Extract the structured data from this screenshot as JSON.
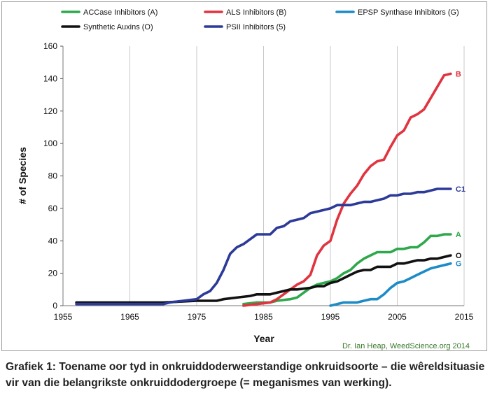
{
  "chart_data": {
    "type": "line",
    "xlabel": "Year",
    "ylabel": "# of Species",
    "xlim": [
      1955,
      2015
    ],
    "ylim": [
      0,
      160
    ],
    "x_ticks": [
      "1955",
      "1965",
      "1975",
      "1985",
      "1995",
      "2005",
      "2015"
    ],
    "y_ticks": [
      "0",
      "20",
      "40",
      "60",
      "80",
      "100",
      "120",
      "140",
      "160"
    ],
    "grid": true,
    "legend_position": "top",
    "annotation": "Dr. Ian Heap, WeedScience.org  2014",
    "series": [
      {
        "name": "ACCase Inhibitors (A)",
        "end_label": "A",
        "color": "#2ea84a",
        "points": [
          [
            1982,
            1
          ],
          [
            1984,
            2
          ],
          [
            1986,
            2
          ],
          [
            1987,
            3
          ],
          [
            1989,
            4
          ],
          [
            1990,
            5
          ],
          [
            1991,
            8
          ],
          [
            1992,
            11
          ],
          [
            1993,
            13
          ],
          [
            1994,
            14
          ],
          [
            1995,
            15
          ],
          [
            1996,
            17
          ],
          [
            1997,
            20
          ],
          [
            1998,
            22
          ],
          [
            1999,
            26
          ],
          [
            2000,
            29
          ],
          [
            2001,
            31
          ],
          [
            2002,
            33
          ],
          [
            2003,
            33
          ],
          [
            2004,
            33
          ],
          [
            2005,
            35
          ],
          [
            2006,
            35
          ],
          [
            2007,
            36
          ],
          [
            2008,
            36
          ],
          [
            2009,
            39
          ],
          [
            2010,
            43
          ],
          [
            2011,
            43
          ],
          [
            2012,
            44
          ],
          [
            2013,
            44
          ]
        ]
      },
      {
        "name": "ALS Inhibitors (B)",
        "end_label": "B",
        "color": "#e03440",
        "points": [
          [
            1982,
            0
          ],
          [
            1984,
            1
          ],
          [
            1986,
            2
          ],
          [
            1987,
            4
          ],
          [
            1988,
            7
          ],
          [
            1989,
            10
          ],
          [
            1990,
            13
          ],
          [
            1991,
            15
          ],
          [
            1992,
            19
          ],
          [
            1993,
            31
          ],
          [
            1994,
            37
          ],
          [
            1995,
            40
          ],
          [
            1996,
            53
          ],
          [
            1997,
            63
          ],
          [
            1998,
            69
          ],
          [
            1999,
            74
          ],
          [
            2000,
            81
          ],
          [
            2001,
            86
          ],
          [
            2002,
            89
          ],
          [
            2003,
            90
          ],
          [
            2004,
            98
          ],
          [
            2005,
            105
          ],
          [
            2006,
            108
          ],
          [
            2007,
            116
          ],
          [
            2008,
            118
          ],
          [
            2009,
            121
          ],
          [
            2010,
            128
          ],
          [
            2011,
            135
          ],
          [
            2012,
            142
          ],
          [
            2013,
            143
          ]
        ]
      },
      {
        "name": "EPSP Synthase Inhibitors (G)",
        "end_label": "G",
        "color": "#1c8bc6",
        "points": [
          [
            1995,
            0
          ],
          [
            1996,
            1
          ],
          [
            1997,
            2
          ],
          [
            1998,
            2
          ],
          [
            1999,
            2
          ],
          [
            2000,
            3
          ],
          [
            2001,
            4
          ],
          [
            2002,
            4
          ],
          [
            2003,
            7
          ],
          [
            2004,
            11
          ],
          [
            2005,
            14
          ],
          [
            2006,
            15
          ],
          [
            2007,
            17
          ],
          [
            2008,
            19
          ],
          [
            2009,
            21
          ],
          [
            2010,
            23
          ],
          [
            2011,
            24
          ],
          [
            2012,
            25
          ],
          [
            2013,
            26
          ]
        ]
      },
      {
        "name": "Synthetic Auxins (O)",
        "end_label": "O",
        "color": "#111111",
        "points": [
          [
            1957,
            2
          ],
          [
            1960,
            2
          ],
          [
            1965,
            2
          ],
          [
            1970,
            2
          ],
          [
            1975,
            3
          ],
          [
            1978,
            3
          ],
          [
            1979,
            4
          ],
          [
            1981,
            5
          ],
          [
            1983,
            6
          ],
          [
            1984,
            7
          ],
          [
            1986,
            7
          ],
          [
            1987,
            8
          ],
          [
            1988,
            9
          ],
          [
            1989,
            10
          ],
          [
            1990,
            10
          ],
          [
            1992,
            11
          ],
          [
            1993,
            12
          ],
          [
            1994,
            12
          ],
          [
            1995,
            14
          ],
          [
            1996,
            15
          ],
          [
            1997,
            17
          ],
          [
            1998,
            19
          ],
          [
            1999,
            21
          ],
          [
            2000,
            22
          ],
          [
            2001,
            22
          ],
          [
            2002,
            24
          ],
          [
            2003,
            24
          ],
          [
            2004,
            24
          ],
          [
            2005,
            26
          ],
          [
            2006,
            26
          ],
          [
            2007,
            27
          ],
          [
            2008,
            28
          ],
          [
            2009,
            28
          ],
          [
            2010,
            29
          ],
          [
            2011,
            29
          ],
          [
            2012,
            30
          ],
          [
            2013,
            31
          ]
        ]
      },
      {
        "name": "PSII Inhibitors (5)",
        "end_label": "C1",
        "color": "#2c3a98",
        "points": [
          [
            1957,
            1
          ],
          [
            1965,
            1
          ],
          [
            1968,
            1
          ],
          [
            1970,
            1
          ],
          [
            1971,
            2
          ],
          [
            1973,
            3
          ],
          [
            1975,
            4
          ],
          [
            1976,
            7
          ],
          [
            1977,
            9
          ],
          [
            1978,
            14
          ],
          [
            1979,
            22
          ],
          [
            1980,
            32
          ],
          [
            1981,
            36
          ],
          [
            1982,
            38
          ],
          [
            1983,
            41
          ],
          [
            1984,
            44
          ],
          [
            1985,
            44
          ],
          [
            1986,
            44
          ],
          [
            1987,
            48
          ],
          [
            1988,
            49
          ],
          [
            1989,
            52
          ],
          [
            1990,
            53
          ],
          [
            1991,
            54
          ],
          [
            1992,
            57
          ],
          [
            1993,
            58
          ],
          [
            1994,
            59
          ],
          [
            1995,
            60
          ],
          [
            1996,
            62
          ],
          [
            1997,
            62
          ],
          [
            1998,
            62
          ],
          [
            1999,
            63
          ],
          [
            2000,
            64
          ],
          [
            2001,
            64
          ],
          [
            2002,
            65
          ],
          [
            2003,
            66
          ],
          [
            2004,
            68
          ],
          [
            2005,
            68
          ],
          [
            2006,
            69
          ],
          [
            2007,
            69
          ],
          [
            2008,
            70
          ],
          [
            2009,
            70
          ],
          [
            2010,
            71
          ],
          [
            2011,
            72
          ],
          [
            2012,
            72
          ],
          [
            2013,
            72
          ]
        ]
      }
    ]
  },
  "caption": {
    "text": "Grafiek 1: Toename oor tyd in onkruiddoderweerstandige onkruidsoorte – die wêreldsituasie vir van die belangrikste onkruiddodergroepe (= meganismes van werking)."
  }
}
